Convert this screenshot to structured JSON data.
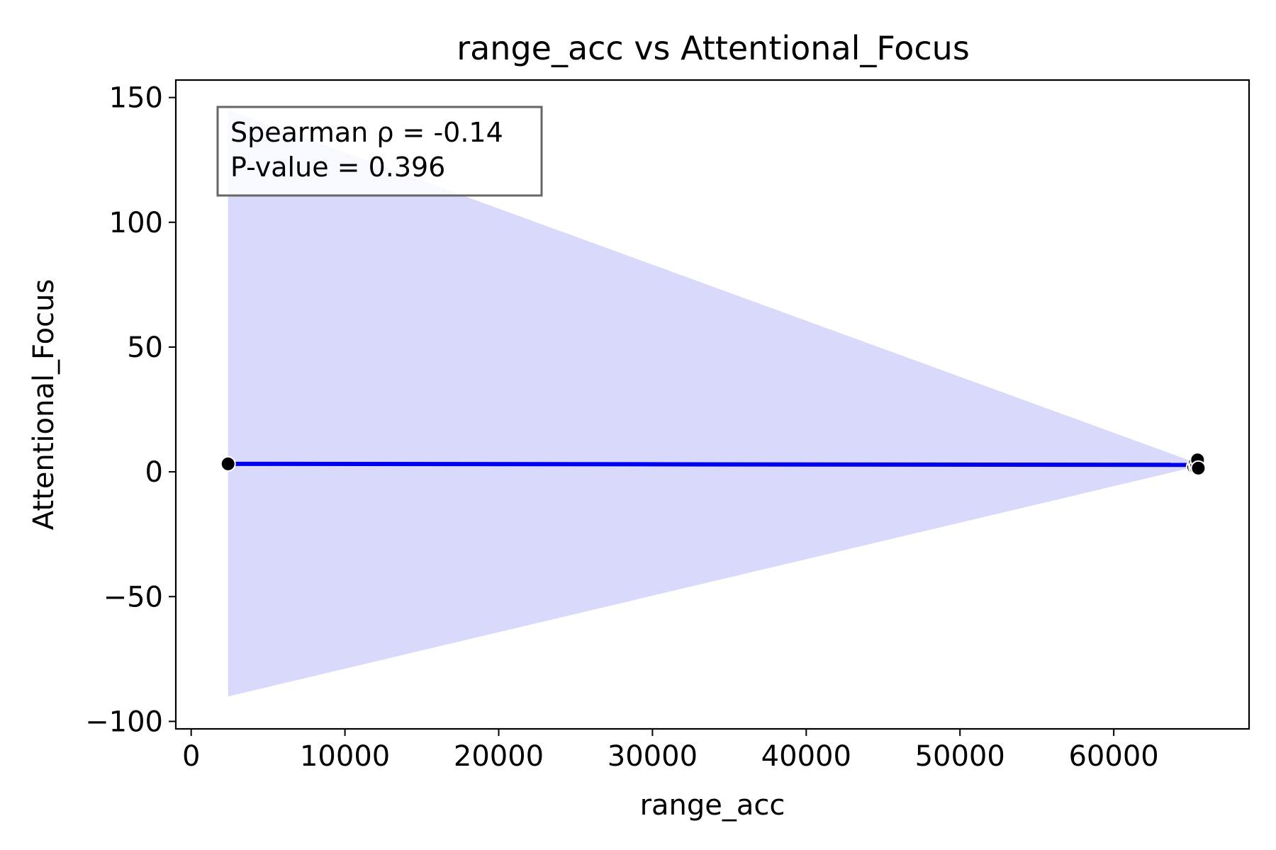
{
  "chart_data": {
    "type": "scatter",
    "title": "range_acc vs Attentional_Focus",
    "xlabel": "range_acc",
    "ylabel": "Attentional_Focus",
    "xlim": [
      -1000,
      68800
    ],
    "ylim": [
      -103,
      157
    ],
    "xticks": [
      0,
      10000,
      20000,
      30000,
      40000,
      50000,
      60000
    ],
    "xtick_labels": [
      "0",
      "10000",
      "20000",
      "30000",
      "40000",
      "50000",
      "60000"
    ],
    "yticks": [
      -100,
      -50,
      0,
      50,
      100,
      150
    ],
    "ytick_labels": [
      "−100",
      "−50",
      "0",
      "50",
      "100",
      "150"
    ],
    "points": [
      {
        "x": 2400,
        "y": 3.2
      },
      {
        "x": 65200,
        "y": 2.0
      },
      {
        "x": 65300,
        "y": 3.5
      },
      {
        "x": 65350,
        "y": 1.8
      },
      {
        "x": 65400,
        "y": 2.6
      },
      {
        "x": 65450,
        "y": 4.8
      },
      {
        "x": 65500,
        "y": 1.5
      }
    ],
    "regression_line": {
      "x": [
        2400,
        65500
      ],
      "y": [
        3.2,
        2.8
      ]
    },
    "confidence_band": {
      "x": [
        2400,
        65500
      ],
      "upper": [
        145,
        3.3
      ],
      "lower": [
        -90,
        2.3
      ]
    },
    "annotation": {
      "lines": [
        "Spearman ρ = -0.14",
        "P-value = 0.396"
      ]
    },
    "colors": {
      "points": "#000000",
      "line": "#0000ee",
      "band": "#d9d9fc",
      "annotation_border": "#666666"
    },
    "grid": false
  }
}
